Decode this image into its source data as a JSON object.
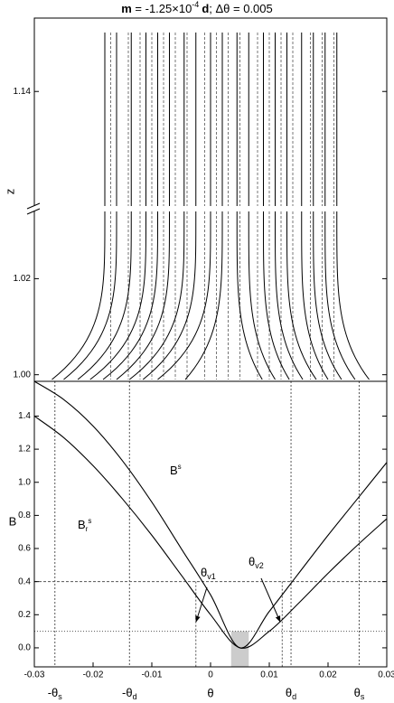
{
  "chart_data": [
    {
      "type": "field-lines",
      "title_parts": [
        "m",
        " = -1.25×10",
        "-4",
        "d",
        ";   Δθ = 0.005"
      ],
      "ylabel": "z",
      "xlim": [
        -0.03,
        0.03
      ],
      "ylim": [
        0.999,
        1.034
      ],
      "ylim_upper": [
        1.116,
        1.155
      ],
      "yticks": [
        {
          "value": 1.0,
          "label": "1.00"
        },
        1.02,
        1.14
      ],
      "x_upper": [
        -0.018,
        -0.016,
        -0.0135,
        -0.011,
        -0.009,
        -0.007,
        -0.0045,
        -0.0025,
        0.0,
        0.002,
        0.0045,
        0.0065,
        0.009,
        0.011,
        0.013,
        0.0155,
        0.0175,
        0.0195,
        0.0215
      ],
      "x_lower": [
        -0.027,
        -0.025,
        -0.0226,
        -0.0205,
        -0.0183,
        -0.016,
        -0.0138,
        -0.0115,
        -0.009,
        -0.0043,
        0.0088,
        0.011,
        0.0134,
        0.0157,
        0.018,
        0.02,
        0.0223,
        0.0246,
        0.027
      ],
      "dashed_x": [
        -0.017,
        -0.014,
        -0.012,
        -0.01,
        -0.008,
        -0.006,
        -0.004,
        -0.001,
        0.001,
        0.003,
        0.005,
        0.008,
        0.01,
        0.012,
        0.014,
        0.017,
        0.019,
        0.021
      ],
      "color": "#000000"
    },
    {
      "type": "line",
      "ylabel": "B",
      "xlabel": "θ",
      "xlim": [
        -0.03,
        0.03
      ],
      "xticks": [
        -0.03,
        -0.02,
        -0.01,
        0,
        0.01,
        0.02,
        0.03
      ],
      "ylim": [
        -0.115,
        1.61
      ],
      "yticks": [
        {
          "value": 0.0,
          "label": "0.0"
        },
        0.2,
        0.4,
        0.6,
        0.8,
        {
          "value": 1.0,
          "label": "1.0"
        },
        1.2,
        1.4
      ],
      "x": [
        -0.03,
        -0.025,
        -0.02,
        -0.015,
        -0.01,
        -0.005,
        0.0,
        0.005,
        0.01,
        0.015,
        0.02,
        0.025,
        0.03
      ],
      "series": [
        {
          "name": "B",
          "sup": "s",
          "color": "#000000",
          "values": [
            1.61,
            1.5,
            1.34,
            1.13,
            0.88,
            0.6,
            0.32,
            0.0,
            0.22,
            0.45,
            0.68,
            0.9,
            1.12
          ]
        },
        {
          "name": "B",
          "sub": "r",
          "sup": "s",
          "color": "#000000",
          "values": [
            1.4,
            1.27,
            1.1,
            0.9,
            0.68,
            0.44,
            0.2,
            0.0,
            0.1,
            0.27,
            0.45,
            0.62,
            0.78
          ]
        }
      ],
      "reference_lines": [
        {
          "value": -0.0265,
          "label": "-θ",
          "sub": "s"
        },
        {
          "value": -0.0138,
          "label": "-θ",
          "sub": "d"
        },
        {
          "value": 0.0137,
          "label": "θ",
          "sub": "d"
        },
        {
          "value": 0.0253,
          "label": "θ",
          "sub": "s"
        }
      ],
      "velocity_lines": [
        {
          "value": -0.0025,
          "label": "θ",
          "sub": "v1"
        },
        {
          "value": 0.0122,
          "label": "θ",
          "sub": "v2"
        }
      ],
      "hlines": [
        0.4,
        0.1
      ],
      "shade": [
        0.0035,
        0.0065
      ]
    }
  ]
}
